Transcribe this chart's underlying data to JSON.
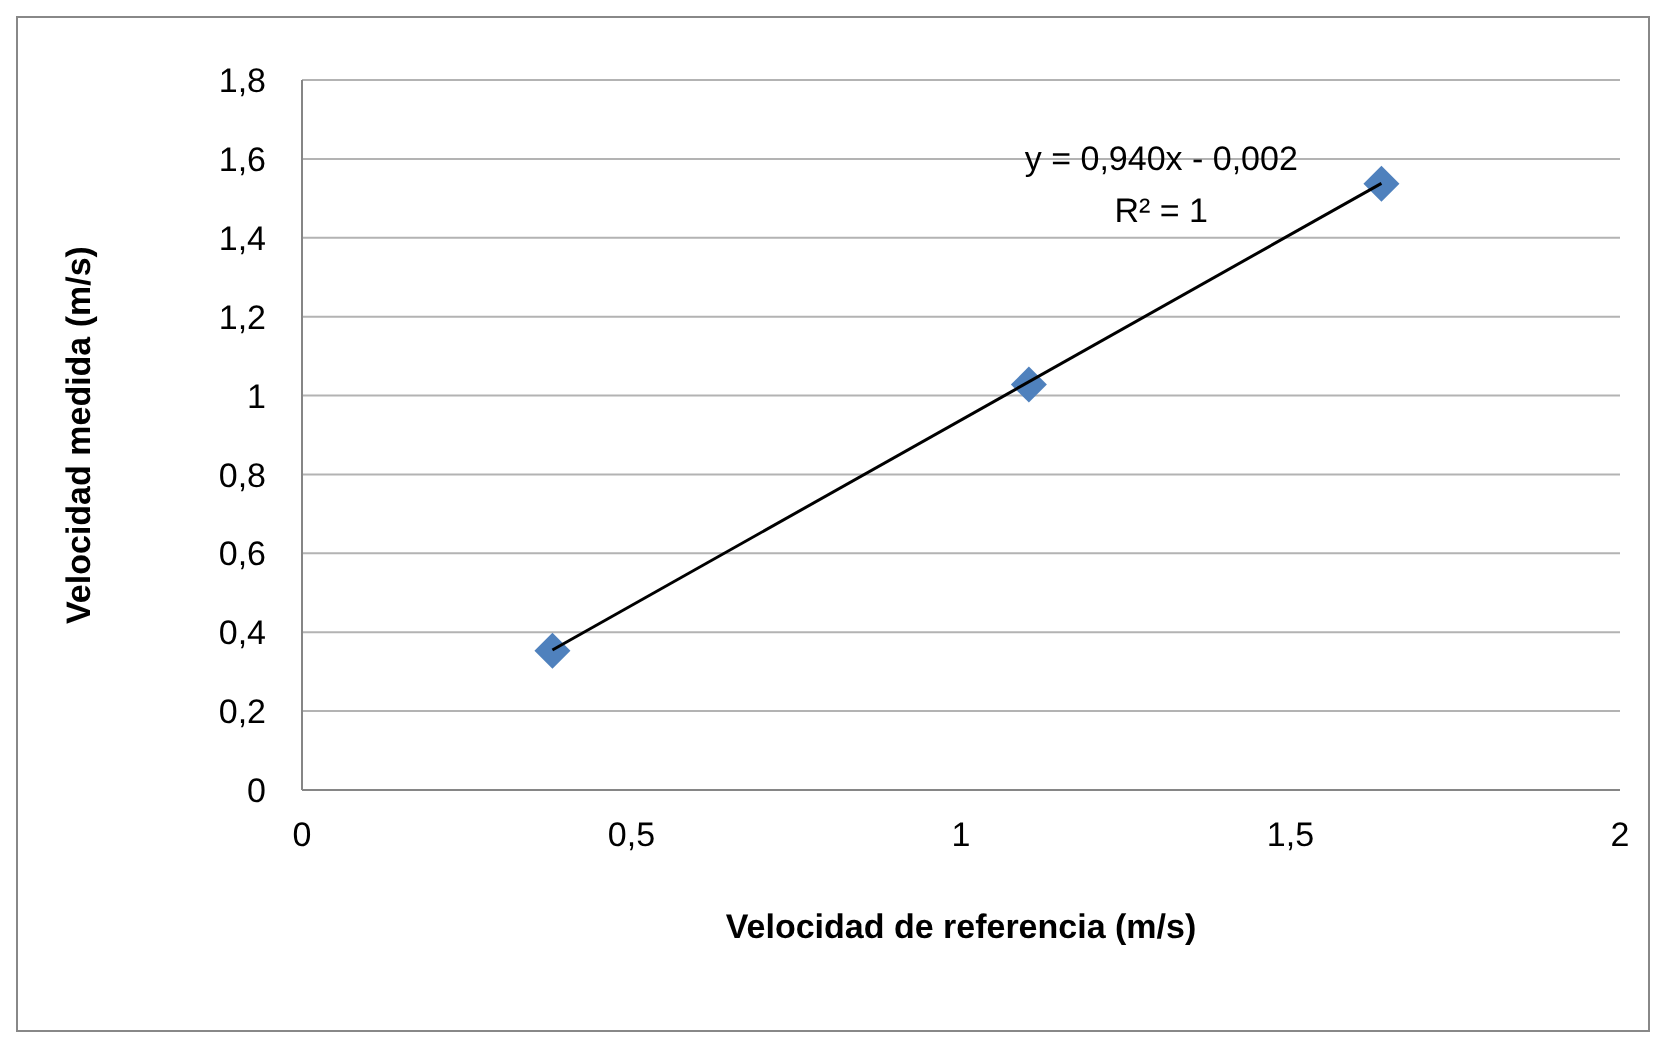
{
  "chart_data": {
    "type": "scatter",
    "xlabel": "Velocidad de referencia (m/s)",
    "ylabel": "Velocidad medida (m/s)",
    "series": [
      {
        "color": "#4f81bd",
        "marker": "diamond",
        "x": [
          0.38,
          1.103,
          1.638
        ],
        "values": [
          0.353,
          1.028,
          1.537
        ]
      },
      {
        "type": "line",
        "color": "#000000",
        "marker": "none",
        "x": [
          0.38,
          1.638
        ],
        "values": [
          0.355,
          1.538
        ]
      }
    ],
    "annotations": [
      "y = 0,940x - 0,002",
      "R² = 1"
    ],
    "xlim": [
      0,
      2
    ],
    "xticks": [
      0,
      {
        "value": 0.5,
        "label": "0,5"
      },
      1,
      {
        "value": 1.5,
        "label": "1,5"
      },
      2
    ],
    "ylim": [
      0,
      1.8
    ],
    "yticks": [
      0,
      {
        "value": 0.2,
        "label": "0,2"
      },
      {
        "value": 0.4,
        "label": "0,4"
      },
      {
        "value": 0.6,
        "label": "0,6"
      },
      {
        "value": 0.8,
        "label": "0,8"
      },
      1,
      {
        "value": 1.2,
        "label": "1,2"
      },
      {
        "value": 1.4,
        "label": "1,4"
      },
      {
        "value": 1.6,
        "label": "1,6"
      },
      {
        "value": 1.8,
        "label": "1,8"
      }
    ],
    "grid": "y"
  }
}
